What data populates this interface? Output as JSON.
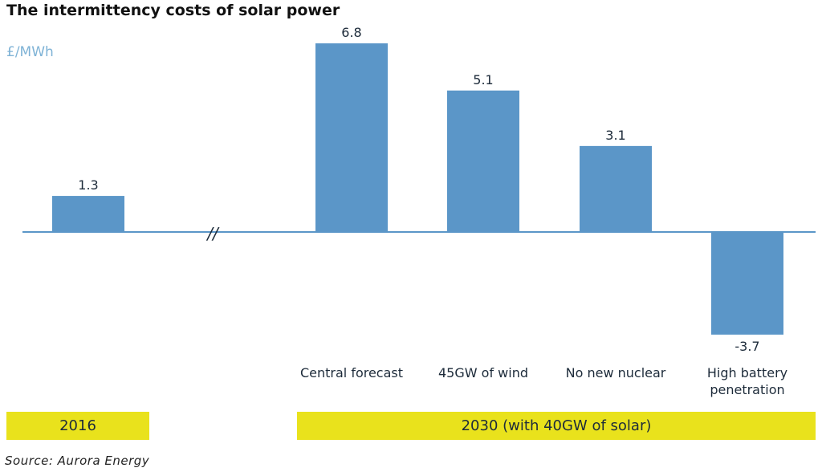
{
  "title": "The intermittency costs of solar power",
  "unit_label": "£/MWh",
  "source": "Source: Aurora Energy",
  "axis_break_glyph": "//",
  "bands": [
    "2016",
    "2030 (with 40GW of solar)"
  ],
  "colors": {
    "bar": "#5b96c8",
    "baseline": "#5b96c8",
    "band": "#e9e21c"
  },
  "chart_data": {
    "type": "bar",
    "categories": [
      "",
      "Central forecast",
      "45GW of wind",
      "No new nuclear",
      "High battery penetration"
    ],
    "values": [
      1.3,
      6.8,
      5.1,
      3.1,
      -3.7
    ],
    "value_labels": [
      "1.3",
      "6.8",
      "5.1",
      "3.1",
      "-3.7"
    ],
    "title": "The intermittency costs of solar power",
    "ylabel": "£/MWh",
    "ylim": [
      -3.7,
      6.8
    ],
    "groups": [
      {
        "label": "2016",
        "categories": [
          ""
        ]
      },
      {
        "label": "2030 (with 40GW of solar)",
        "categories": [
          "Central forecast",
          "45GW of wind",
          "No new nuclear",
          "High battery penetration"
        ]
      }
    ],
    "grid": false
  }
}
